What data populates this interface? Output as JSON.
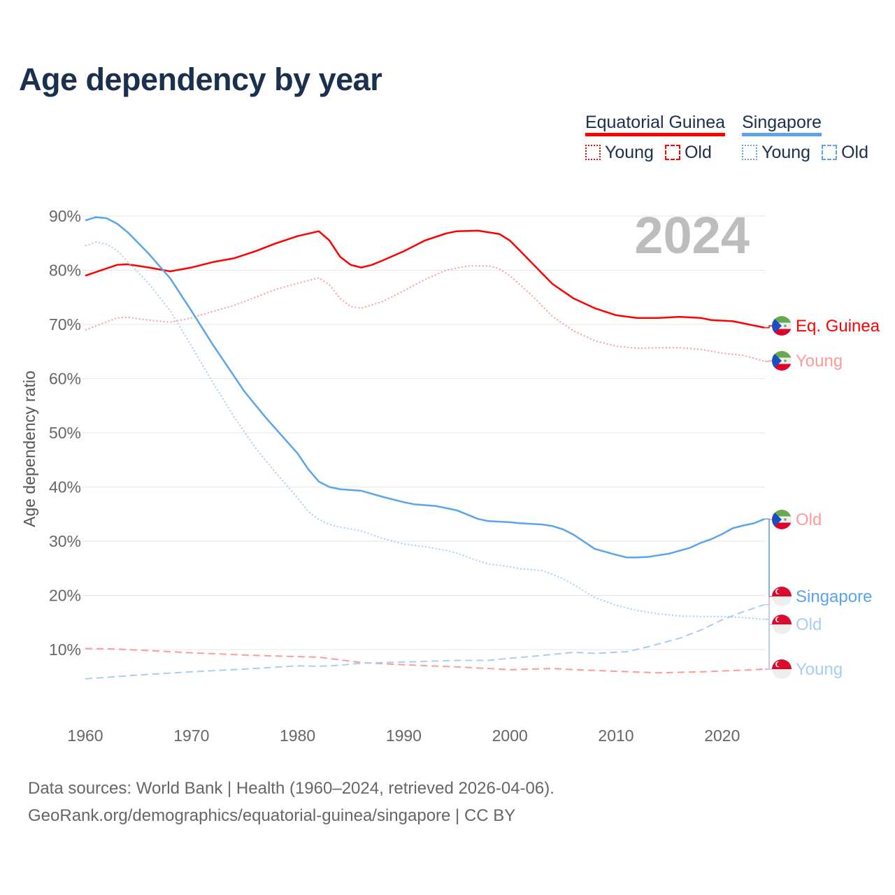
{
  "title": "Age dependency by year",
  "year_badge": "2024",
  "legend": {
    "countries": [
      {
        "name": "Equatorial Guinea",
        "color": "#ff0000",
        "light": "#ff9a9a",
        "items": [
          "Young",
          "Old"
        ]
      },
      {
        "name": "Singapore",
        "color": "#5ba4ec",
        "light": "#a9cdf3",
        "items": [
          "Young",
          "Old"
        ]
      }
    ]
  },
  "source": {
    "line1": "Data sources: World Bank | Health (1960–2024, retrieved 2026-04-06).",
    "line2": "GeoRank.org/demographics/equatorial-guinea/singapore | CC BY"
  },
  "chart_data": {
    "type": "line",
    "title": "Age dependency by year",
    "xlabel": "",
    "ylabel": "Age dependency ratio",
    "xlim": [
      1960,
      2024
    ],
    "ylim": [
      0,
      90
    ],
    "x_ticks": [
      "1960",
      "1970",
      "1980",
      "1990",
      "2000",
      "2010",
      "2020"
    ],
    "y_ticks": [
      "10%",
      "20%",
      "30%",
      "40%",
      "50%",
      "60%",
      "70%",
      "80%",
      "90%"
    ],
    "grid": true,
    "series": [
      {
        "name": "Equatorial Guinea",
        "end_label": "Eq. Guinea",
        "style": "solid",
        "color": "#ff0000",
        "flag": "equatorial-guinea",
        "points": [
          [
            1960,
            79
          ],
          [
            1963,
            81
          ],
          [
            1964,
            81.1
          ],
          [
            1966,
            80.5
          ],
          [
            1968,
            79.8
          ],
          [
            1970,
            80.5
          ],
          [
            1972,
            81.5
          ],
          [
            1974,
            82.2
          ],
          [
            1976,
            83.5
          ],
          [
            1978,
            85
          ],
          [
            1980,
            86.3
          ],
          [
            1982,
            87.2
          ],
          [
            1983,
            85.5
          ],
          [
            1984,
            82.5
          ],
          [
            1985,
            81
          ],
          [
            1986,
            80.5
          ],
          [
            1987,
            81
          ],
          [
            1988,
            81.8
          ],
          [
            1990,
            83.5
          ],
          [
            1992,
            85.5
          ],
          [
            1994,
            86.8
          ],
          [
            1995,
            87.2
          ],
          [
            1997,
            87.3
          ],
          [
            1999,
            86.7
          ],
          [
            2000,
            85.5
          ],
          [
            2002,
            81.5
          ],
          [
            2004,
            77.5
          ],
          [
            2006,
            74.8
          ],
          [
            2008,
            73
          ],
          [
            2010,
            71.7
          ],
          [
            2012,
            71.2
          ],
          [
            2014,
            71.2
          ],
          [
            2016,
            71.4
          ],
          [
            2018,
            71.2
          ],
          [
            2019,
            70.8
          ],
          [
            2021,
            70.6
          ],
          [
            2024,
            69.4
          ]
        ]
      },
      {
        "name": "Equatorial Guinea Young",
        "end_label": "Young",
        "style": "dotted",
        "color": "#ff9a9a",
        "flag": "equatorial-guinea",
        "points": [
          [
            1960,
            69
          ],
          [
            1963,
            71.2
          ],
          [
            1964,
            71.3
          ],
          [
            1966,
            70.8
          ],
          [
            1968,
            70.4
          ],
          [
            1970,
            71.2
          ],
          [
            1972,
            72.4
          ],
          [
            1974,
            73.5
          ],
          [
            1976,
            75
          ],
          [
            1978,
            76.5
          ],
          [
            1980,
            77.6
          ],
          [
            1982,
            78.6
          ],
          [
            1983,
            77.3
          ],
          [
            1984,
            74.8
          ],
          [
            1985,
            73.3
          ],
          [
            1986,
            73
          ],
          [
            1988,
            74.2
          ],
          [
            1990,
            76.2
          ],
          [
            1992,
            78.3
          ],
          [
            1994,
            80
          ],
          [
            1996,
            80.8
          ],
          [
            1998,
            80.8
          ],
          [
            1999,
            80.3
          ],
          [
            2000,
            79
          ],
          [
            2002,
            75.5
          ],
          [
            2004,
            71.5
          ],
          [
            2006,
            68.8
          ],
          [
            2008,
            67
          ],
          [
            2010,
            66
          ],
          [
            2012,
            65.6
          ],
          [
            2014,
            65.7
          ],
          [
            2016,
            65.7
          ],
          [
            2018,
            65.4
          ],
          [
            2020,
            64.7
          ],
          [
            2022,
            64.3
          ],
          [
            2024,
            63.2
          ]
        ]
      },
      {
        "name": "Equatorial Guinea Old",
        "end_label": "Old",
        "style": "dashed",
        "color": "#ff9a9a",
        "flag": "equatorial-guinea",
        "points": [
          [
            1960,
            10.2
          ],
          [
            1963,
            10.1
          ],
          [
            1966,
            9.8
          ],
          [
            1970,
            9.4
          ],
          [
            1975,
            9.0
          ],
          [
            1980,
            8.7
          ],
          [
            1982,
            8.6
          ],
          [
            1984,
            8.1
          ],
          [
            1986,
            7.6
          ],
          [
            1990,
            7.2
          ],
          [
            1995,
            6.8
          ],
          [
            2000,
            6.3
          ],
          [
            2004,
            6.5
          ],
          [
            2006,
            6.3
          ],
          [
            2010,
            6.0
          ],
          [
            2014,
            5.7
          ],
          [
            2018,
            5.9
          ],
          [
            2022,
            6.2
          ],
          [
            2024,
            6.4
          ]
        ]
      },
      {
        "name": "Singapore",
        "end_label": "Singapore",
        "style": "solid",
        "color": "#5ba4ec",
        "flag": "singapore",
        "points": [
          [
            1960,
            89.2
          ],
          [
            1961,
            89.8
          ],
          [
            1962,
            89.6
          ],
          [
            1963,
            88.6
          ],
          [
            1964,
            87
          ],
          [
            1966,
            83
          ],
          [
            1968,
            78.5
          ],
          [
            1970,
            72.5
          ],
          [
            1972,
            66.3
          ],
          [
            1974,
            60.5
          ],
          [
            1975,
            57.6
          ],
          [
            1977,
            52.8
          ],
          [
            1980,
            46.2
          ],
          [
            1981,
            43.3
          ],
          [
            1982,
            41
          ],
          [
            1983,
            40
          ],
          [
            1984,
            39.6
          ],
          [
            1986,
            39.3
          ],
          [
            1988,
            38.2
          ],
          [
            1990,
            37.2
          ],
          [
            1991,
            36.8
          ],
          [
            1993,
            36.5
          ],
          [
            1995,
            35.7
          ],
          [
            1997,
            34.1
          ],
          [
            1998,
            33.7
          ],
          [
            2000,
            33.5
          ],
          [
            2001,
            33.3
          ],
          [
            2003,
            33.1
          ],
          [
            2004,
            32.8
          ],
          [
            2005,
            32.2
          ],
          [
            2006,
            31.2
          ],
          [
            2008,
            28.6
          ],
          [
            2010,
            27.5
          ],
          [
            2011,
            27.0
          ],
          [
            2012,
            27.0
          ],
          [
            2013,
            27.1
          ],
          [
            2015,
            27.7
          ],
          [
            2017,
            28.8
          ],
          [
            2018,
            29.7
          ],
          [
            2019,
            30.4
          ],
          [
            2020,
            31.3
          ],
          [
            2021,
            32.4
          ],
          [
            2022,
            32.9
          ],
          [
            2023,
            33.3
          ],
          [
            2024,
            34.1
          ]
        ]
      },
      {
        "name": "Singapore Old",
        "end_label": "Old",
        "style": "dashed",
        "color": "#a9cdf3",
        "flag": "singapore",
        "points": [
          [
            1960,
            4.6
          ],
          [
            1965,
            5.3
          ],
          [
            1970,
            5.9
          ],
          [
            1975,
            6.4
          ],
          [
            1980,
            7.0
          ],
          [
            1982,
            6.9
          ],
          [
            1984,
            7.1
          ],
          [
            1986,
            7.5
          ],
          [
            1990,
            7.7
          ],
          [
            1995,
            8.0
          ],
          [
            1998,
            8.0
          ],
          [
            2000,
            8.4
          ],
          [
            2003,
            8.9
          ],
          [
            2006,
            9.5
          ],
          [
            2008,
            9.3
          ],
          [
            2011,
            9.6
          ],
          [
            2013,
            10.5
          ],
          [
            2016,
            12.1
          ],
          [
            2018,
            13.6
          ],
          [
            2020,
            15.5
          ],
          [
            2022,
            17.0
          ],
          [
            2024,
            18.3
          ]
        ]
      },
      {
        "name": "Singapore Young",
        "end_label": "Young",
        "style": "dotted",
        "color": "#a9cdf3",
        "flag": "singapore",
        "points": [
          [
            1960,
            84.5
          ],
          [
            1961,
            85.2
          ],
          [
            1962,
            84.8
          ],
          [
            1963,
            83.6
          ],
          [
            1964,
            81.6
          ],
          [
            1966,
            77.5
          ],
          [
            1968,
            72.5
          ],
          [
            1970,
            66
          ],
          [
            1972,
            59.3
          ],
          [
            1974,
            53
          ],
          [
            1976,
            47.3
          ],
          [
            1978,
            42.5
          ],
          [
            1980,
            38
          ],
          [
            1981,
            35.5
          ],
          [
            1982,
            34
          ],
          [
            1983,
            33.1
          ],
          [
            1984,
            32.6
          ],
          [
            1986,
            31.9
          ],
          [
            1988,
            30.5
          ],
          [
            1990,
            29.5
          ],
          [
            1992,
            29
          ],
          [
            1994,
            28.3
          ],
          [
            1995,
            27.8
          ],
          [
            1997,
            26.4
          ],
          [
            1998,
            25.8
          ],
          [
            2000,
            25.3
          ],
          [
            2001,
            24.9
          ],
          [
            2003,
            24.6
          ],
          [
            2004,
            23.9
          ],
          [
            2005,
            23.1
          ],
          [
            2006,
            22
          ],
          [
            2008,
            19.6
          ],
          [
            2010,
            18.2
          ],
          [
            2012,
            17.2
          ],
          [
            2014,
            16.6
          ],
          [
            2016,
            16.2
          ],
          [
            2018,
            16.1
          ],
          [
            2020,
            16.1
          ],
          [
            2022,
            15.9
          ],
          [
            2024,
            15.6
          ]
        ]
      }
    ]
  }
}
